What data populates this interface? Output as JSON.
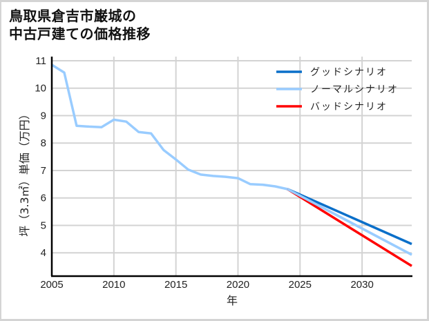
{
  "title": {
    "line1": "鳥取県倉吉市巌城の",
    "line2": "中古戸建ての価格推移"
  },
  "colors": {
    "good": "#0a6fc9",
    "normal": "#99ccff",
    "bad": "#ff0000",
    "grid": "#d3d3d3",
    "axis": "#000000",
    "frame": "#d4d4d4"
  },
  "legend": {
    "position": "upper right",
    "items": [
      {
        "label": "グッドシナリオ",
        "color": "#0a6fc9"
      },
      {
        "label": "ノーマルシナリオ",
        "color": "#99ccff"
      },
      {
        "label": "バッドシナリオ",
        "color": "#ff0000"
      }
    ]
  },
  "axes": {
    "xlabel": "年",
    "ylabel": "坪（3.3㎡）単価（万円）",
    "xticks": [
      "2005",
      "2010",
      "2015",
      "2020",
      "2025",
      "2030"
    ],
    "yticks": [
      "4",
      "5",
      "6",
      "7",
      "8",
      "9",
      "10",
      "11"
    ]
  },
  "chart_data": {
    "type": "line",
    "title": "鳥取県倉吉市巌城の中古戸建ての価格推移",
    "xlabel": "年",
    "ylabel": "坪（3.3㎡）単価（万円）",
    "xlim": [
      2005,
      2034
    ],
    "ylim": [
      3.15,
      11.15
    ],
    "grid": true,
    "legend_position": "upper right",
    "xticks": [
      2005,
      2010,
      2015,
      2020,
      2025,
      2030
    ],
    "yticks": [
      4,
      5,
      6,
      7,
      8,
      9,
      10,
      11
    ],
    "series": [
      {
        "name": "ノーマルシナリオ",
        "color": "#99ccff",
        "x": [
          2005,
          2006,
          2007,
          2008,
          2009,
          2010,
          2011,
          2012,
          2013,
          2014,
          2015,
          2016,
          2017,
          2018,
          2019,
          2020,
          2021,
          2022,
          2023,
          2024,
          2034
        ],
        "values": [
          10.85,
          10.57,
          8.63,
          8.6,
          8.58,
          8.85,
          8.78,
          8.4,
          8.35,
          7.75,
          7.4,
          7.03,
          6.85,
          6.8,
          6.77,
          6.72,
          6.5,
          6.48,
          6.42,
          6.32,
          3.93
        ]
      },
      {
        "name": "グッドシナリオ",
        "color": "#0a6fc9",
        "x": [
          2024,
          2034
        ],
        "values": [
          6.32,
          4.32
        ]
      },
      {
        "name": "バッドシナリオ",
        "color": "#ff0000",
        "x": [
          2024,
          2034
        ],
        "values": [
          6.32,
          3.52
        ]
      }
    ]
  }
}
